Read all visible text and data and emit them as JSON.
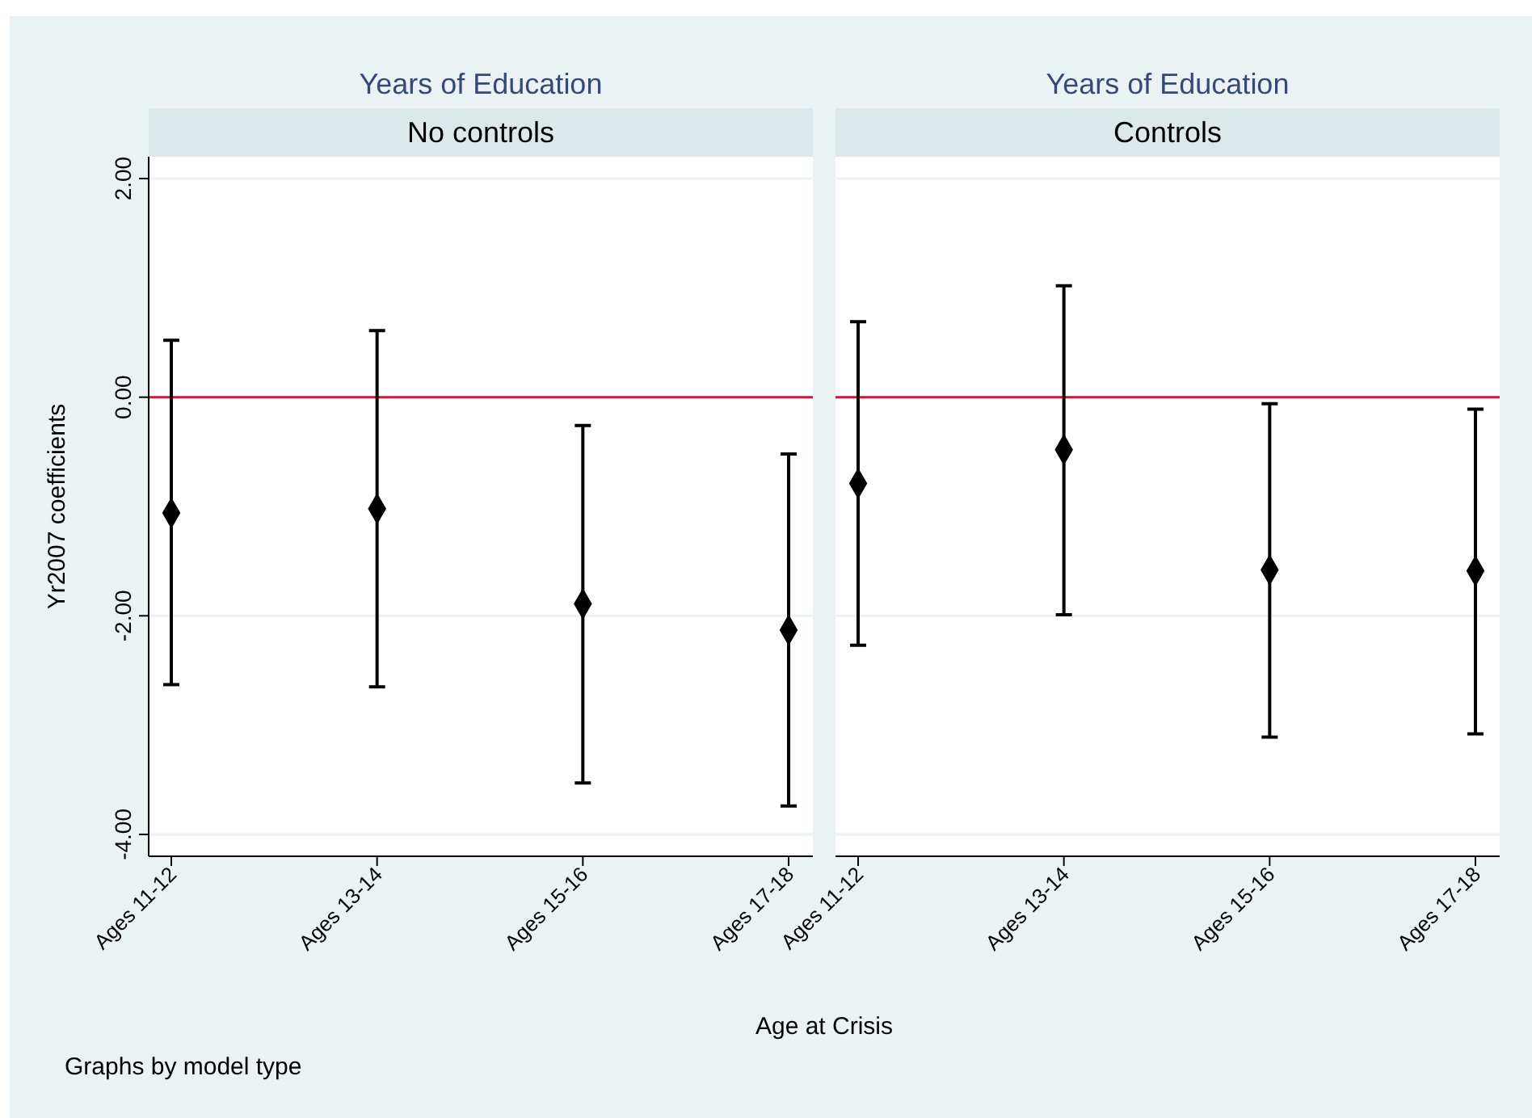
{
  "chart_data": [
    {
      "type": "scatter",
      "title": "Years of Education",
      "subtitle": "No controls",
      "xlabel": "Age at Crisis",
      "ylabel": "Yr2007 coefficients",
      "annotations": [
        "Graphs by model type"
      ],
      "categories": [
        "Ages 11-12",
        "Ages 13-14",
        "Ages 15-16",
        "Ages 17-18"
      ],
      "series": [
        {
          "color": "#000000",
          "values": [
            -1.06,
            -1.02,
            -1.89,
            -2.13
          ],
          "errors": [
            [
              -2.63,
              0.52
            ],
            [
              -2.65,
              0.61
            ],
            [
              -3.53,
              -0.26
            ],
            [
              -3.74,
              -0.52
            ]
          ]
        }
      ],
      "ylim": [
        -4.2,
        2.2
      ],
      "yticks": [
        {
          "value": -4,
          "label": "-4.00"
        },
        {
          "value": -2,
          "label": "-2.00"
        },
        {
          "value": 0,
          "label": "0.00"
        },
        {
          "value": 2,
          "label": "2.00"
        }
      ],
      "grid": "y",
      "marker": "diamond",
      "ref_lines": [
        {
          "axis": "y",
          "value": 0,
          "color": "#d0173b"
        }
      ]
    },
    {
      "type": "scatter",
      "title": "Years of Education",
      "subtitle": "Controls",
      "categories": [
        "Ages 11-12",
        "Ages 13-14",
        "Ages 15-16",
        "Ages 17-18"
      ],
      "series": [
        {
          "color": "#000000",
          "values": [
            -0.79,
            -0.48,
            -1.58,
            -1.59
          ],
          "errors": [
            [
              -2.27,
              0.69
            ],
            [
              -1.99,
              1.02
            ],
            [
              -3.11,
              -0.06
            ],
            [
              -3.08,
              -0.11
            ]
          ]
        }
      ],
      "ylim": [
        -4.2,
        2.2
      ],
      "yticks": [
        -4,
        -2,
        0,
        2
      ],
      "grid": "y",
      "marker": "diamond",
      "tick_labels": "x",
      "ref_lines": [
        {
          "axis": "y",
          "value": 0,
          "color": "#d0173b"
        }
      ]
    }
  ]
}
